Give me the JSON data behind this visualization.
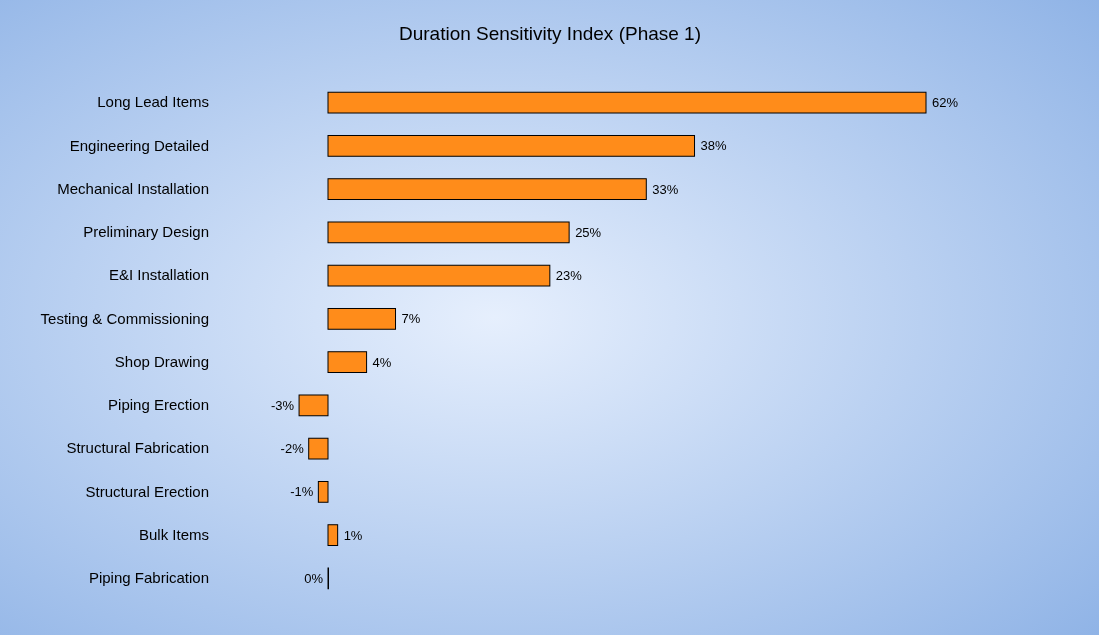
{
  "chart_data": {
    "type": "bar",
    "orientation": "horizontal",
    "title": "Duration Sensitivity Index (Phase 1)",
    "categories": [
      "Long Lead Items",
      "Engineering Detailed",
      "Mechanical Installation",
      "Preliminary Design",
      "E&I Installation",
      "Testing & Commissioning",
      "Shop Drawing",
      "Piping Erection",
      "Structural Fabrication",
      "Structural Erection",
      "Bulk Items",
      "Piping Fabrication"
    ],
    "values": [
      62,
      38,
      33,
      25,
      23,
      7,
      4,
      -3,
      -2,
      -1,
      1,
      0
    ],
    "value_labels": [
      "62%",
      "38%",
      "33%",
      "25%",
      "23%",
      "7%",
      "4%",
      "-3%",
      "-2%",
      "-1%",
      "1%",
      "0%"
    ],
    "color": "#ff8c1a"
  }
}
